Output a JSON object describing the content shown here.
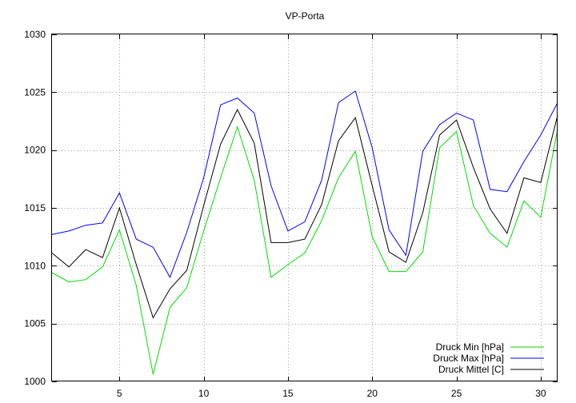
{
  "chart_data": {
    "type": "line",
    "title": "VP-Porta",
    "xlabel": "",
    "ylabel": "",
    "xlim": [
      1,
      31
    ],
    "ylim": [
      1000,
      1030
    ],
    "x_ticks": [
      5,
      10,
      15,
      20,
      25,
      30
    ],
    "y_ticks": [
      1000,
      1005,
      1010,
      1015,
      1020,
      1025,
      1030
    ],
    "grid": true,
    "legend_position": "bottom-right",
    "x": [
      1,
      2,
      3,
      4,
      5,
      6,
      7,
      8,
      9,
      10,
      11,
      12,
      13,
      14,
      15,
      16,
      17,
      18,
      19,
      20,
      21,
      22,
      23,
      24,
      25,
      26,
      27,
      28,
      29,
      30,
      31
    ],
    "series": [
      {
        "name": "Druck Min [hPa]",
        "color": "#00e000",
        "values": [
          1009.4,
          1008.6,
          1008.8,
          1009.9,
          1013.1,
          1008.3,
          1000.6,
          1006.4,
          1008.1,
          1013.0,
          1017.6,
          1022.0,
          1017.4,
          1009.0,
          1010.1,
          1011.1,
          1013.9,
          1017.6,
          1019.9,
          1012.5,
          1009.5,
          1009.5,
          1011.2,
          1020.2,
          1021.6,
          1015.2,
          1012.8,
          1011.6,
          1015.6,
          1014.2,
          1021.8
        ]
      },
      {
        "name": "Druck Max [hPa]",
        "color": "#0000ff",
        "values": [
          1012.7,
          1013.0,
          1013.5,
          1013.7,
          1016.3,
          1012.3,
          1011.6,
          1009.0,
          1012.9,
          1017.6,
          1023.9,
          1024.5,
          1023.2,
          1016.9,
          1013.0,
          1013.8,
          1017.4,
          1024.1,
          1025.1,
          1020.2,
          1013.1,
          1010.9,
          1019.9,
          1022.2,
          1023.2,
          1022.6,
          1016.6,
          1016.4,
          1019.0,
          1021.3,
          1024.1
        ]
      },
      {
        "name": "Druck Mittel [C]",
        "color": "#000000",
        "values": [
          1011.1,
          1009.9,
          1011.4,
          1010.7,
          1015.0,
          1010.1,
          1005.5,
          1008.0,
          1009.6,
          1015.2,
          1020.5,
          1023.5,
          1020.6,
          1012.0,
          1012.0,
          1012.3,
          1015.3,
          1020.8,
          1022.8,
          1016.9,
          1011.2,
          1010.3,
          1014.6,
          1021.3,
          1022.6,
          1018.5,
          1014.9,
          1012.8,
          1017.6,
          1017.2,
          1023.0
        ]
      }
    ]
  }
}
